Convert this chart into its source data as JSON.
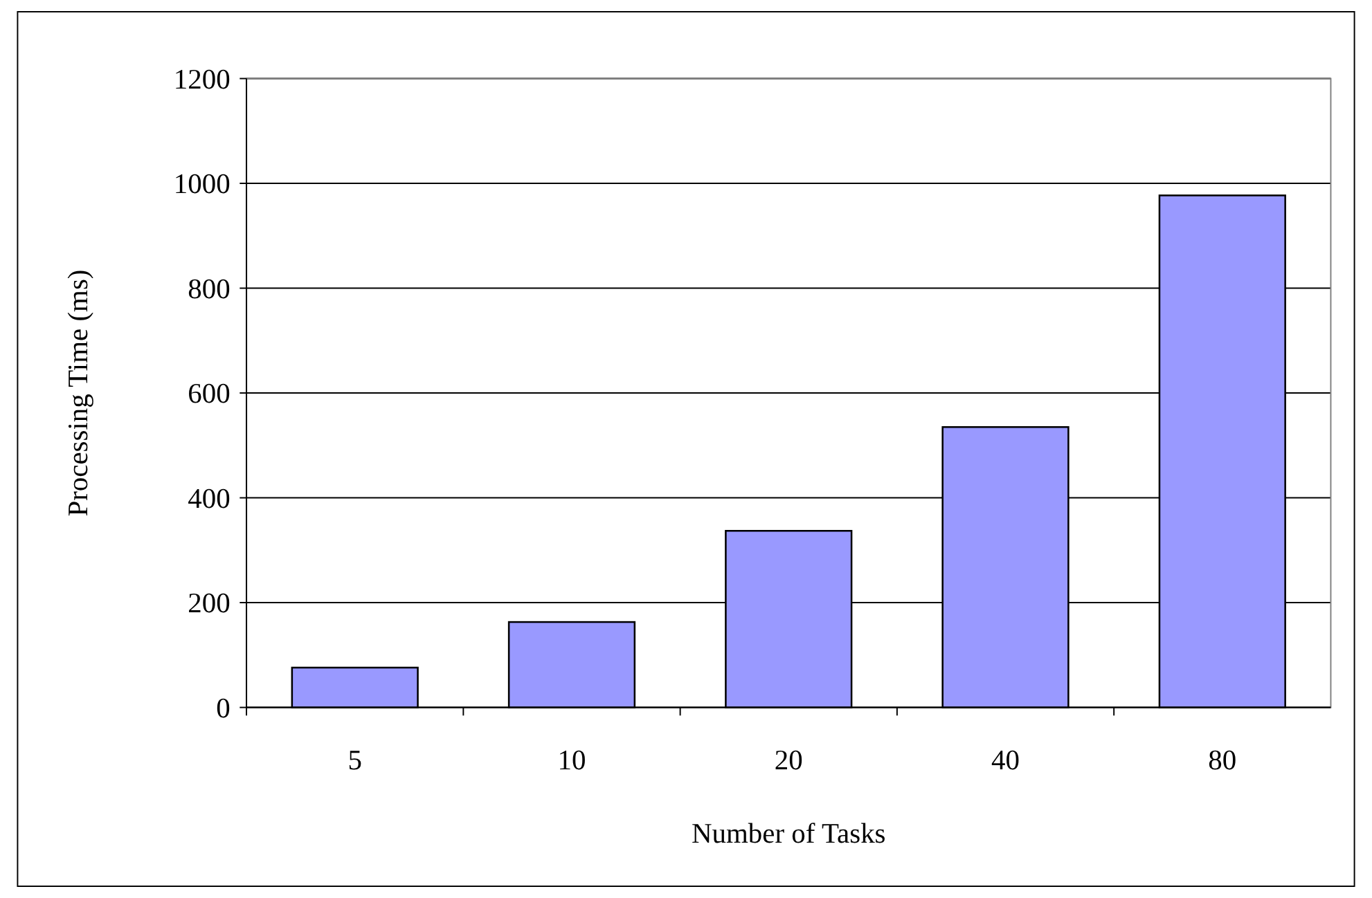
{
  "chart_data": {
    "type": "bar",
    "xlabel": "Number of Tasks",
    "ylabel": "Processing Time (ms)",
    "categories": [
      "5",
      "10",
      "20",
      "40",
      "80"
    ],
    "values": [
      76,
      163,
      337,
      535,
      977
    ],
    "color": "#9999ff",
    "ylim": [
      0,
      1200
    ],
    "yticks": [
      0,
      200,
      400,
      600,
      800,
      1000,
      1200
    ],
    "grid": "y"
  }
}
